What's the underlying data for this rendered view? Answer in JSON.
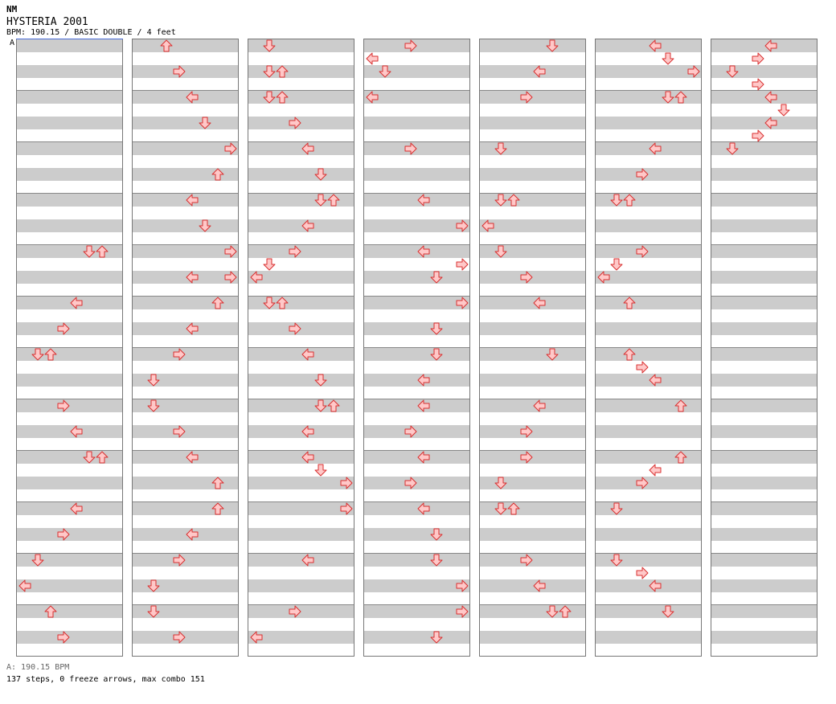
{
  "header": {
    "logo": "NM",
    "title": "HYSTERIA 2001",
    "info": "BPM: 190.15 / BASIC DOUBLE / 4 feet",
    "bpm_marker": "A"
  },
  "footer": {
    "bpm_line": "A: 190.15 BPM",
    "stats": "137 steps, 0 freeze arrows, max combo 151"
  },
  "colors": {
    "arrow_fill": "#ffc8c8",
    "arrow_stroke": "#d83030",
    "band": "#cccccc",
    "measure_line": "#888888"
  },
  "chart": {
    "columns": 7,
    "measures_per_column": 12,
    "rows_per_measure": 4,
    "lanes": 8
  },
  "columns": [
    [
      [],
      [],
      [],
      [],
      [],
      [],
      [],
      [],
      [],
      [],
      [],
      [],
      [],
      [],
      [],
      [],
      [
        [
          5,
          "down"
        ],
        [
          6,
          "up"
        ]
      ],
      [],
      [],
      [],
      [
        [
          4,
          "left"
        ]
      ],
      [],
      [
        [
          3,
          "right"
        ]
      ],
      [],
      [
        [
          1,
          "down"
        ],
        [
          2,
          "up"
        ]
      ],
      [],
      [],
      [],
      [
        [
          3,
          "right"
        ]
      ],
      [],
      [
        [
          4,
          "left"
        ]
      ],
      [],
      [
        [
          5,
          "down"
        ],
        [
          6,
          "up"
        ]
      ],
      [],
      [],
      [],
      [
        [
          4,
          "left"
        ]
      ],
      [],
      [
        [
          3,
          "right"
        ]
      ],
      [],
      [
        [
          1,
          "down"
        ]
      ],
      [],
      [
        [
          0,
          "left"
        ]
      ],
      [],
      [
        [
          2,
          "up"
        ]
      ],
      [],
      [
        [
          3,
          "right"
        ]
      ],
      [],
      [
        [
          1,
          "down"
        ]
      ],
      [],
      [
        [
          0,
          "left"
        ]
      ],
      []
    ],
    [
      [
        [
          2,
          "up"
        ]
      ],
      [],
      [
        [
          3,
          "right"
        ]
      ],
      [],
      [
        [
          4,
          "left"
        ]
      ],
      [],
      [
        [
          5,
          "down"
        ]
      ],
      [],
      [
        [
          7,
          "right"
        ]
      ],
      [],
      [
        [
          6,
          "up"
        ]
      ],
      [],
      [
        [
          4,
          "left"
        ]
      ],
      [],
      [
        [
          5,
          "down"
        ]
      ],
      [],
      [
        [
          7,
          "right"
        ]
      ],
      [],
      [
        [
          4,
          "left"
        ],
        [
          7,
          "right"
        ]
      ],
      [],
      [
        [
          6,
          "up"
        ]
      ],
      [],
      [
        [
          4,
          "left"
        ]
      ],
      [],
      [
        [
          3,
          "right"
        ]
      ],
      [],
      [
        [
          1,
          "down"
        ]
      ],
      [],
      [
        [
          1,
          "down"
        ]
      ],
      [],
      [
        [
          3,
          "right"
        ]
      ],
      [],
      [
        [
          4,
          "left"
        ]
      ],
      [],
      [
        [
          6,
          "up"
        ]
      ],
      [],
      [
        [
          6,
          "up"
        ]
      ],
      [],
      [
        [
          4,
          "left"
        ]
      ],
      [],
      [
        [
          3,
          "right"
        ]
      ],
      [],
      [
        [
          1,
          "down"
        ]
      ],
      [],
      [
        [
          1,
          "down"
        ]
      ],
      [],
      [
        [
          3,
          "right"
        ]
      ],
      []
    ],
    [
      [
        [
          1,
          "down"
        ]
      ],
      [],
      [
        [
          1,
          "down"
        ],
        [
          2,
          "up"
        ]
      ],
      [],
      [
        [
          1,
          "down"
        ],
        [
          2,
          "up"
        ]
      ],
      [],
      [
        [
          3,
          "right"
        ]
      ],
      [],
      [
        [
          4,
          "left"
        ]
      ],
      [],
      [
        [
          5,
          "down"
        ]
      ],
      [],
      [
        [
          5,
          "down"
        ],
        [
          6,
          "up"
        ]
      ],
      [],
      [
        [
          4,
          "left"
        ]
      ],
      [],
      [
        [
          3,
          "right"
        ]
      ],
      [
        [
          1,
          "down"
        ]
      ],
      [
        [
          0,
          "left"
        ]
      ],
      [],
      [
        [
          1,
          "down"
        ],
        [
          2,
          "up"
        ]
      ],
      [],
      [
        [
          3,
          "right"
        ]
      ],
      [],
      [
        [
          4,
          "left"
        ]
      ],
      [],
      [
        [
          5,
          "down"
        ]
      ],
      [],
      [
        [
          5,
          "down"
        ],
        [
          6,
          "up"
        ]
      ],
      [],
      [
        [
          4,
          "left"
        ]
      ],
      [],
      [
        [
          4,
          "left"
        ]
      ],
      [
        [
          5,
          "down"
        ]
      ],
      [
        [
          7,
          "right"
        ]
      ],
      [],
      [
        [
          7,
          "right"
        ]
      ],
      [],
      [],
      [],
      [
        [
          4,
          "left"
        ]
      ],
      [],
      [],
      [],
      [
        [
          3,
          "right"
        ]
      ],
      [],
      [
        [
          0,
          "left"
        ]
      ],
      []
    ],
    [
      [
        [
          3,
          "right"
        ]
      ],
      [
        [
          0,
          "left"
        ]
      ],
      [
        [
          1,
          "down"
        ]
      ],
      [],
      [
        [
          0,
          "left"
        ]
      ],
      [],
      [],
      [],
      [
        [
          3,
          "right"
        ]
      ],
      [],
      [],
      [],
      [
        [
          4,
          "left"
        ]
      ],
      [],
      [
        [
          7,
          "right"
        ]
      ],
      [],
      [
        [
          4,
          "left"
        ]
      ],
      [
        [
          7,
          "right"
        ]
      ],
      [
        [
          5,
          "down"
        ]
      ],
      [],
      [
        [
          7,
          "right"
        ]
      ],
      [],
      [
        [
          5,
          "down"
        ]
      ],
      [],
      [
        [
          5,
          "down"
        ]
      ],
      [],
      [
        [
          4,
          "left"
        ]
      ],
      [],
      [
        [
          4,
          "left"
        ]
      ],
      [],
      [
        [
          3,
          "right"
        ]
      ],
      [],
      [
        [
          4,
          "left"
        ]
      ],
      [],
      [
        [
          3,
          "right"
        ]
      ],
      [],
      [
        [
          4,
          "left"
        ]
      ],
      [],
      [
        [
          5,
          "down"
        ]
      ],
      [],
      [
        [
          5,
          "down"
        ]
      ],
      [],
      [
        [
          7,
          "right"
        ]
      ],
      [],
      [
        [
          7,
          "right"
        ]
      ],
      [],
      [
        [
          5,
          "down"
        ]
      ],
      []
    ],
    [
      [
        [
          5,
          "down"
        ]
      ],
      [],
      [
        [
          4,
          "left"
        ]
      ],
      [],
      [
        [
          3,
          "right"
        ]
      ],
      [],
      [],
      [],
      [
        [
          1,
          "down"
        ]
      ],
      [],
      [],
      [],
      [
        [
          1,
          "down"
        ],
        [
          2,
          "up"
        ]
      ],
      [],
      [
        [
          0,
          "left"
        ]
      ],
      [],
      [
        [
          1,
          "down"
        ]
      ],
      [],
      [
        [
          3,
          "right"
        ]
      ],
      [],
      [
        [
          4,
          "left"
        ]
      ],
      [],
      [],
      [],
      [
        [
          5,
          "down"
        ]
      ],
      [],
      [],
      [],
      [
        [
          4,
          "left"
        ]
      ],
      [],
      [
        [
          3,
          "right"
        ]
      ],
      [],
      [
        [
          3,
          "right"
        ]
      ],
      [],
      [
        [
          1,
          "down"
        ]
      ],
      [],
      [
        [
          1,
          "down"
        ],
        [
          2,
          "up"
        ]
      ],
      [],
      [],
      [],
      [
        [
          3,
          "right"
        ]
      ],
      [],
      [
        [
          4,
          "left"
        ]
      ],
      [],
      [
        [
          5,
          "down"
        ],
        [
          6,
          "up"
        ]
      ],
      [],
      [],
      []
    ],
    [
      [
        [
          4,
          "left"
        ]
      ],
      [
        [
          5,
          "down"
        ]
      ],
      [
        [
          7,
          "right"
        ]
      ],
      [],
      [
        [
          5,
          "down"
        ],
        [
          6,
          "up"
        ]
      ],
      [],
      [],
      [],
      [
        [
          4,
          "left"
        ]
      ],
      [],
      [
        [
          3,
          "right"
        ]
      ],
      [],
      [
        [
          1,
          "down"
        ],
        [
          2,
          "up"
        ]
      ],
      [],
      [],
      [],
      [
        [
          3,
          "right"
        ]
      ],
      [
        [
          1,
          "down"
        ]
      ],
      [
        [
          0,
          "left"
        ]
      ],
      [],
      [
        [
          2,
          "up"
        ]
      ],
      [],
      [],
      [],
      [
        [
          2,
          "up"
        ]
      ],
      [
        [
          3,
          "right"
        ]
      ],
      [
        [
          4,
          "left"
        ]
      ],
      [],
      [
        [
          6,
          "up"
        ]
      ],
      [],
      [],
      [],
      [
        [
          6,
          "up"
        ]
      ],
      [
        [
          4,
          "left"
        ]
      ],
      [
        [
          3,
          "right"
        ]
      ],
      [],
      [
        [
          1,
          "down"
        ]
      ],
      [],
      [],
      [],
      [
        [
          1,
          "down"
        ]
      ],
      [
        [
          3,
          "right"
        ]
      ],
      [
        [
          4,
          "left"
        ]
      ],
      [],
      [
        [
          5,
          "down"
        ]
      ],
      [],
      [],
      []
    ],
    [
      [
        [
          4,
          "left"
        ]
      ],
      [
        [
          3,
          "right"
        ]
      ],
      [
        [
          1,
          "down"
        ]
      ],
      [
        [
          3,
          "right"
        ]
      ],
      [
        [
          4,
          "left"
        ]
      ],
      [
        [
          5,
          "down"
        ]
      ],
      [
        [
          4,
          "left"
        ]
      ],
      [
        [
          3,
          "right"
        ]
      ],
      [
        [
          1,
          "down"
        ]
      ],
      [],
      [],
      [],
      [],
      [],
      [],
      [],
      [],
      [],
      [],
      [],
      [],
      [],
      [],
      [],
      [],
      [],
      [],
      [],
      [],
      [],
      [],
      [],
      [],
      [],
      [],
      [],
      [],
      [],
      [],
      [],
      [],
      [],
      [],
      [],
      [],
      [],
      [],
      []
    ]
  ]
}
